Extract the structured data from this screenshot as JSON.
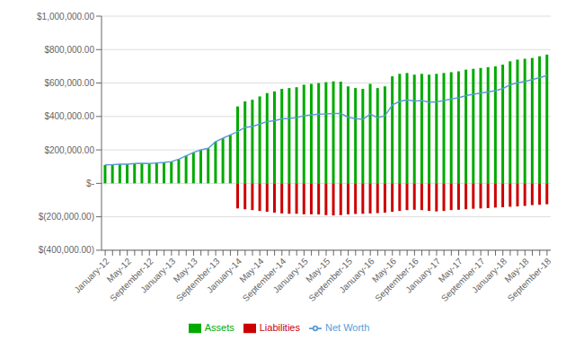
{
  "chart_data": {
    "type": "bar",
    "categories": [
      "January-12",
      null,
      null,
      "May-12",
      null,
      null,
      "September-12",
      null,
      null,
      "January-13",
      null,
      null,
      "May-13",
      null,
      null,
      "September-13",
      null,
      null,
      "January-14",
      null,
      null,
      "May-14",
      null,
      null,
      "September-14",
      null,
      null,
      "January-15",
      null,
      null,
      "May-15",
      null,
      null,
      "September-15",
      null,
      null,
      "January-16",
      null,
      null,
      "May-16",
      null,
      null,
      "September-16",
      null,
      null,
      "January-17",
      null,
      null,
      "May-17",
      null,
      null,
      "September-17",
      null,
      null,
      "January-18",
      null,
      null,
      "May-18",
      null,
      null,
      "September-18"
    ],
    "series": [
      {
        "name": "Assets",
        "type": "bar",
        "color": "#00AA00",
        "values": [
          110000,
          112000,
          115000,
          115000,
          118000,
          120000,
          118000,
          122000,
          125000,
          130000,
          145000,
          165000,
          185000,
          200000,
          210000,
          250000,
          270000,
          290000,
          460000,
          490000,
          500000,
          520000,
          540000,
          550000,
          565000,
          570000,
          575000,
          590000,
          595000,
          600000,
          605000,
          610000,
          608000,
          580000,
          570000,
          565000,
          595000,
          570000,
          580000,
          640000,
          655000,
          660000,
          650000,
          655000,
          650000,
          655000,
          660000,
          665000,
          670000,
          680000,
          685000,
          690000,
          695000,
          700000,
          710000,
          730000,
          740000,
          745000,
          750000,
          760000,
          770000
        ]
      },
      {
        "name": "Liabilities",
        "type": "bar",
        "color": "#CC0000",
        "values": [
          0,
          0,
          0,
          0,
          0,
          0,
          0,
          0,
          0,
          0,
          0,
          0,
          0,
          0,
          0,
          0,
          0,
          0,
          -150000,
          -155000,
          -160000,
          -165000,
          -170000,
          -175000,
          -180000,
          -182000,
          -182000,
          -185000,
          -185000,
          -186000,
          -190000,
          -192000,
          -190000,
          -185000,
          -183000,
          -182000,
          -180000,
          -178000,
          -175000,
          -170000,
          -165000,
          -160000,
          -158000,
          -160000,
          -165000,
          -168000,
          -165000,
          -160000,
          -158000,
          -155000,
          -152000,
          -150000,
          -148000,
          -145000,
          -143000,
          -140000,
          -138000,
          -135000,
          -130000,
          -128000,
          -125000
        ]
      },
      {
        "name": "Net Worth",
        "type": "line",
        "color": "#5B9BD5",
        "values": [
          110000,
          112000,
          115000,
          115000,
          118000,
          120000,
          118000,
          122000,
          125000,
          130000,
          145000,
          165000,
          185000,
          200000,
          210000,
          250000,
          270000,
          290000,
          310000,
          335000,
          340000,
          355000,
          370000,
          375000,
          385000,
          388000,
          393000,
          405000,
          410000,
          414000,
          415000,
          418000,
          418000,
          395000,
          387000,
          383000,
          415000,
          392000,
          405000,
          470000,
          490000,
          500000,
          492000,
          495000,
          485000,
          487000,
          495000,
          505000,
          512000,
          525000,
          533000,
          540000,
          547000,
          555000,
          567000,
          590000,
          602000,
          610000,
          620000,
          632000,
          645000
        ]
      }
    ],
    "stacked": true,
    "ylim": [
      -400000,
      1000000
    ],
    "yticks": [
      {
        "value": -400000,
        "label": "$(400,000.00)"
      },
      {
        "value": -200000,
        "label": "$(200,000.00)"
      },
      {
        "value": 0,
        "label": "$-"
      },
      {
        "value": 200000,
        "label": "$200,000.00"
      },
      {
        "value": 400000,
        "label": "$400,000.00"
      },
      {
        "value": 600000,
        "label": "$600,000.00"
      },
      {
        "value": 800000,
        "label": "$800,000.00"
      },
      {
        "value": 1000000,
        "label": "$1,000,000.00"
      }
    ],
    "grid": true,
    "legend": "bottom"
  }
}
